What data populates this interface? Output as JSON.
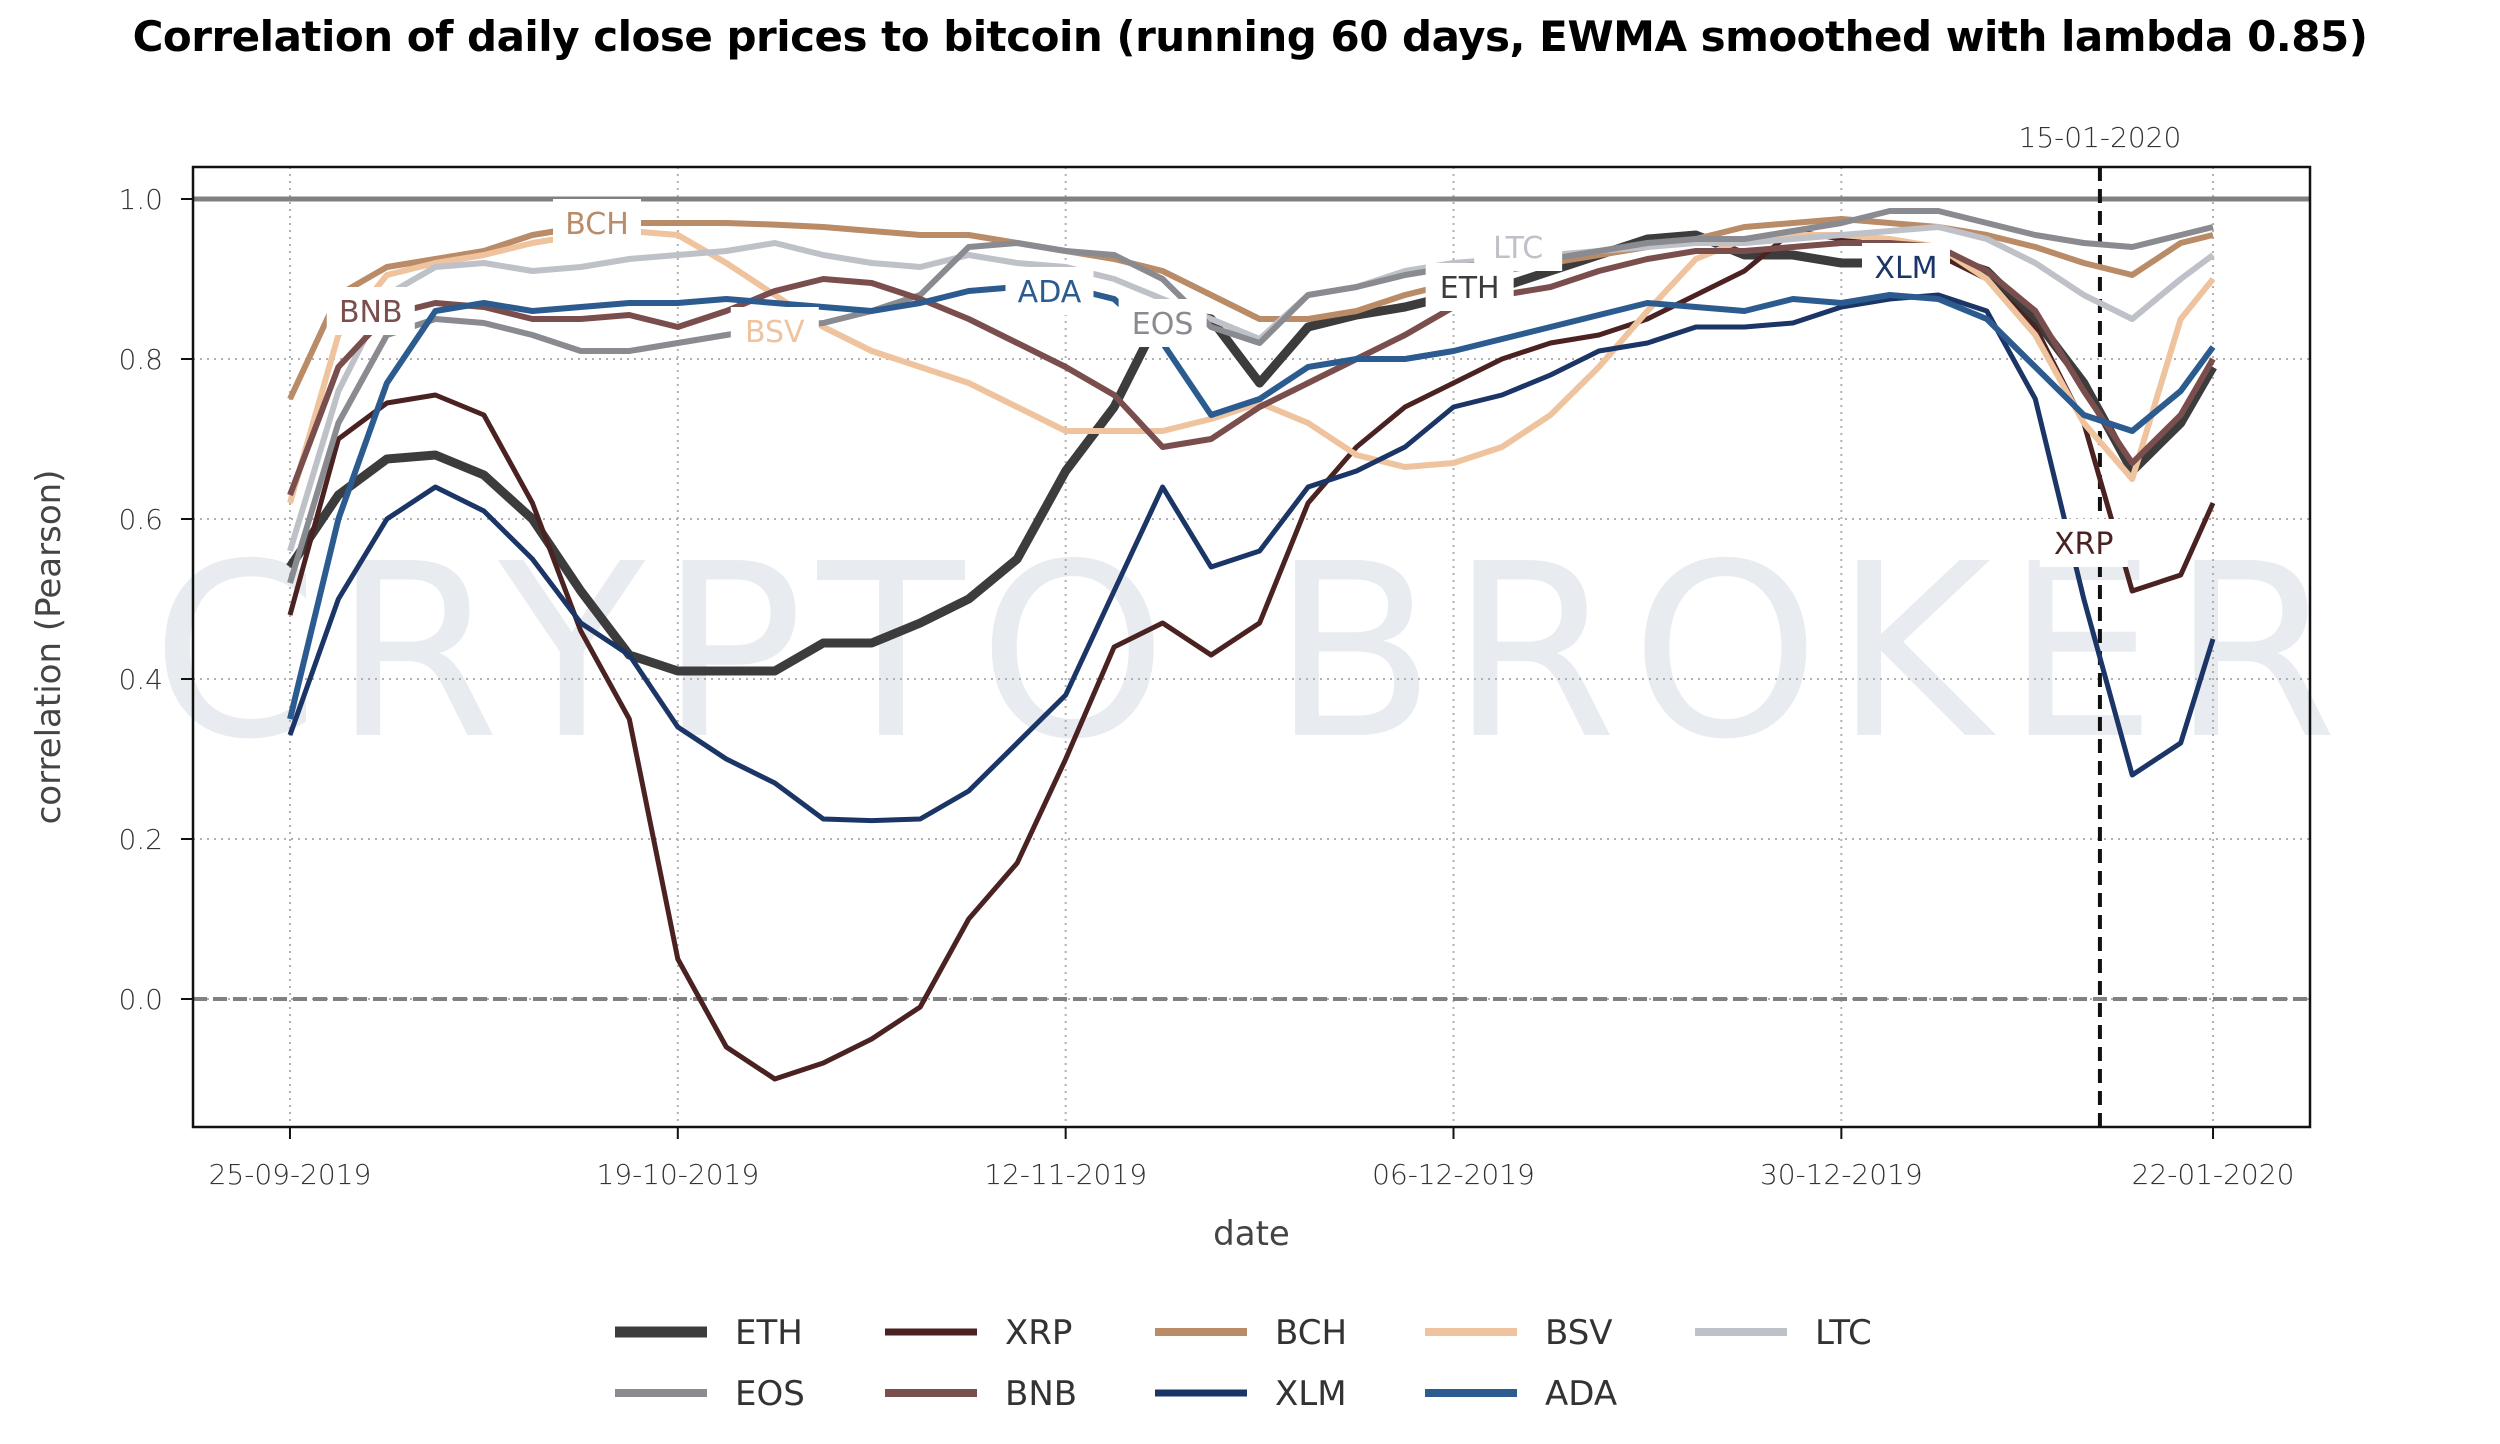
{
  "chart_data": {
    "type": "line",
    "title": "Correlation of daily close prices to bitcoin (running 60 days, EWMA smoothed with lambda 0.85)",
    "xlabel": "date",
    "ylabel": "correlation (Pearson)",
    "watermark": "CRYPTO BROKER",
    "x_unit": "days since 25-09-2019",
    "xlim": [
      -6,
      125
    ],
    "ylim": [
      -0.16,
      1.04
    ],
    "grid": true,
    "x_ticks": [
      {
        "day": 0,
        "label": "25-09-2019"
      },
      {
        "day": 24,
        "label": "19-10-2019"
      },
      {
        "day": 48,
        "label": "12-11-2019"
      },
      {
        "day": 72,
        "label": "06-12-2019"
      },
      {
        "day": 96,
        "label": "30-12-2019"
      },
      {
        "day": 119,
        "label": "22-01-2020"
      }
    ],
    "y_ticks": [
      {
        "value": 0.0,
        "label": "0.0"
      },
      {
        "value": 0.2,
        "label": "0.2"
      },
      {
        "value": 0.4,
        "label": "0.4"
      },
      {
        "value": 0.6,
        "label": "0.6"
      },
      {
        "value": 0.8,
        "label": "0.8"
      },
      {
        "value": 1.0,
        "label": "1.0"
      }
    ],
    "reference_lines": [
      {
        "axis": "y",
        "value": 1.0,
        "style": "solid",
        "color": "#808080"
      },
      {
        "axis": "y",
        "value": 0.0,
        "style": "dashed",
        "color": "#808080"
      },
      {
        "axis": "x",
        "day": 112,
        "style": "dashed",
        "color": "#111111",
        "label": "15-01-2020"
      }
    ],
    "legend": {
      "position": "bottom-center",
      "columns": 5
    },
    "x": [
      0,
      3,
      6,
      9,
      12,
      15,
      18,
      21,
      24,
      27,
      30,
      33,
      36,
      39,
      42,
      45,
      48,
      51,
      54,
      57,
      60,
      63,
      66,
      69,
      72,
      75,
      78,
      81,
      84,
      87,
      90,
      93,
      96,
      99,
      102,
      105,
      108,
      111,
      114,
      117,
      119
    ],
    "series": [
      {
        "name": "ETH",
        "color": "#3c3c3c",
        "width": 9,
        "label_at": 73,
        "label_value": 0.89,
        "values": [
          0.54,
          0.63,
          0.675,
          0.68,
          0.655,
          0.6,
          0.51,
          0.43,
          0.41,
          0.41,
          0.41,
          0.445,
          0.445,
          0.47,
          0.5,
          0.55,
          0.66,
          0.74,
          0.86,
          0.85,
          0.77,
          0.84,
          0.855,
          0.865,
          0.88,
          0.89,
          0.91,
          0.93,
          0.95,
          0.955,
          0.93,
          0.93,
          0.92,
          0.92,
          0.93,
          0.91,
          0.85,
          0.77,
          0.66,
          0.72,
          0.79
        ]
      },
      {
        "name": "XRP",
        "color": "#4b2222",
        "width": 5,
        "label_at": 111,
        "label_value": 0.57,
        "values": [
          0.48,
          0.7,
          0.745,
          0.755,
          0.73,
          0.62,
          0.46,
          0.35,
          0.05,
          -0.06,
          -0.1,
          -0.08,
          -0.05,
          -0.01,
          0.1,
          0.17,
          0.3,
          0.44,
          0.47,
          0.43,
          0.47,
          0.62,
          0.69,
          0.74,
          0.77,
          0.8,
          0.82,
          0.83,
          0.85,
          0.88,
          0.91,
          0.96,
          0.95,
          0.94,
          0.93,
          0.9,
          0.84,
          0.72,
          0.51,
          0.53,
          0.62
        ]
      },
      {
        "name": "BCH",
        "color": "#b98b66",
        "width": 6,
        "label_at": 19,
        "label_value": 0.97,
        "values": [
          0.75,
          0.88,
          0.915,
          0.925,
          0.935,
          0.955,
          0.965,
          0.97,
          0.97,
          0.97,
          0.968,
          0.965,
          0.96,
          0.955,
          0.955,
          0.945,
          0.935,
          0.925,
          0.91,
          0.88,
          0.85,
          0.85,
          0.86,
          0.88,
          0.895,
          0.91,
          0.92,
          0.93,
          0.94,
          0.95,
          0.965,
          0.97,
          0.975,
          0.97,
          0.965,
          0.955,
          0.94,
          0.92,
          0.905,
          0.945,
          0.955
        ]
      },
      {
        "name": "BSV",
        "color": "#eec39d",
        "width": 6,
        "label_at": 30,
        "label_value": 0.835,
        "values": [
          0.62,
          0.83,
          0.905,
          0.92,
          0.93,
          0.945,
          0.955,
          0.96,
          0.955,
          0.92,
          0.88,
          0.84,
          0.81,
          0.79,
          0.77,
          0.74,
          0.71,
          0.71,
          0.71,
          0.725,
          0.745,
          0.72,
          0.68,
          0.665,
          0.67,
          0.69,
          0.73,
          0.79,
          0.86,
          0.925,
          0.95,
          0.955,
          0.955,
          0.95,
          0.94,
          0.9,
          0.83,
          0.72,
          0.65,
          0.85,
          0.9
        ]
      },
      {
        "name": "LTC",
        "color": "#bfc1c8",
        "width": 6,
        "label_at": 76,
        "label_value": 0.94,
        "values": [
          0.56,
          0.76,
          0.88,
          0.915,
          0.92,
          0.91,
          0.915,
          0.925,
          0.93,
          0.935,
          0.945,
          0.93,
          0.92,
          0.915,
          0.93,
          0.92,
          0.915,
          0.9,
          0.875,
          0.85,
          0.825,
          0.88,
          0.89,
          0.91,
          0.92,
          0.925,
          0.93,
          0.935,
          0.94,
          0.945,
          0.945,
          0.95,
          0.955,
          0.96,
          0.965,
          0.95,
          0.92,
          0.88,
          0.85,
          0.9,
          0.93
        ]
      },
      {
        "name": "EOS",
        "color": "#898b91",
        "width": 6,
        "label_at": 54,
        "label_value": 0.845,
        "values": [
          0.52,
          0.72,
          0.83,
          0.85,
          0.845,
          0.83,
          0.81,
          0.81,
          0.82,
          0.83,
          0.84,
          0.845,
          0.86,
          0.88,
          0.94,
          0.945,
          0.935,
          0.93,
          0.9,
          0.84,
          0.82,
          0.88,
          0.89,
          0.905,
          0.915,
          0.92,
          0.925,
          0.935,
          0.945,
          0.95,
          0.95,
          0.96,
          0.97,
          0.985,
          0.985,
          0.97,
          0.955,
          0.945,
          0.94,
          0.955,
          0.965
        ]
      },
      {
        "name": "BNB",
        "color": "#7b4e4e",
        "width": 6,
        "label_at": 5,
        "label_value": 0.86,
        "values": [
          0.63,
          0.79,
          0.855,
          0.87,
          0.865,
          0.85,
          0.85,
          0.855,
          0.84,
          0.86,
          0.885,
          0.9,
          0.895,
          0.875,
          0.85,
          0.82,
          0.79,
          0.755,
          0.69,
          0.7,
          0.74,
          0.77,
          0.8,
          0.83,
          0.865,
          0.88,
          0.89,
          0.91,
          0.925,
          0.935,
          0.935,
          0.94,
          0.945,
          0.945,
          0.94,
          0.91,
          0.86,
          0.76,
          0.67,
          0.73,
          0.8
        ]
      },
      {
        "name": "XLM",
        "color": "#1b3567",
        "width": 5,
        "label_at": 100,
        "label_value": 0.915,
        "values": [
          0.33,
          0.5,
          0.6,
          0.64,
          0.61,
          0.55,
          0.47,
          0.43,
          0.34,
          0.3,
          0.27,
          0.225,
          0.223,
          0.225,
          0.26,
          0.32,
          0.38,
          0.51,
          0.64,
          0.54,
          0.56,
          0.64,
          0.66,
          0.69,
          0.74,
          0.755,
          0.78,
          0.81,
          0.82,
          0.84,
          0.84,
          0.845,
          0.865,
          0.875,
          0.88,
          0.86,
          0.75,
          0.5,
          0.28,
          0.32,
          0.45
        ]
      },
      {
        "name": "ADA",
        "color": "#2c5b8f",
        "width": 6,
        "label_at": 47,
        "label_value": 0.885,
        "values": [
          0.35,
          0.6,
          0.77,
          0.86,
          0.87,
          0.86,
          0.865,
          0.87,
          0.87,
          0.875,
          0.87,
          0.865,
          0.86,
          0.87,
          0.885,
          0.89,
          0.89,
          0.875,
          0.82,
          0.73,
          0.75,
          0.79,
          0.8,
          0.8,
          0.81,
          0.825,
          0.84,
          0.855,
          0.87,
          0.865,
          0.86,
          0.875,
          0.87,
          0.88,
          0.875,
          0.85,
          0.79,
          0.73,
          0.71,
          0.76,
          0.815
        ]
      }
    ]
  }
}
